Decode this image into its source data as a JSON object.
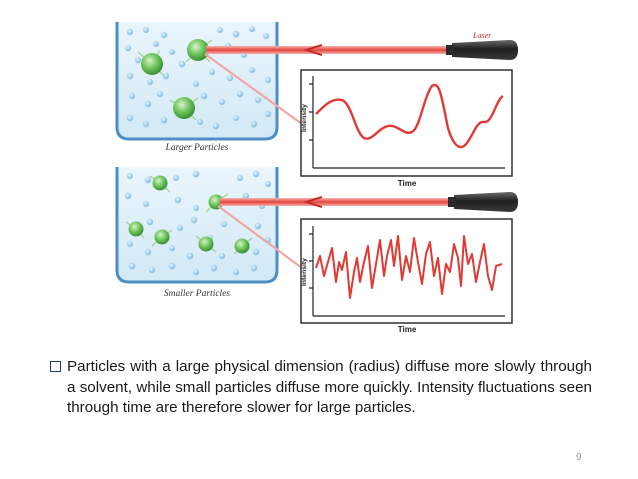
{
  "figure": {
    "laser_label": "Laser",
    "panels": [
      {
        "caption": "Larger Particles",
        "graph_ylabel": "Intensity",
        "graph_xlabel": "Time",
        "trace_color": "#e03a34"
      },
      {
        "caption": "Smaller Particles",
        "graph_ylabel": "Intensity",
        "graph_xlabel": "Time",
        "trace_color": "#e03a34"
      }
    ],
    "colors": {
      "container_border": "#4d8fc4",
      "liquid": "#dceef8",
      "particle": "#5cb85c",
      "solvent_dot": "#8cc4e8",
      "laser_beam": "#e84b45",
      "laser_body": "#2c2c2c"
    }
  },
  "caption": {
    "text": "Particles with a large physical dimension (radius) diffuse more slowly through a solvent, while small particles diffuse more quickly.  Intensity fluctuations seen through time are therefore slower for large particles."
  },
  "page_number": "9"
}
